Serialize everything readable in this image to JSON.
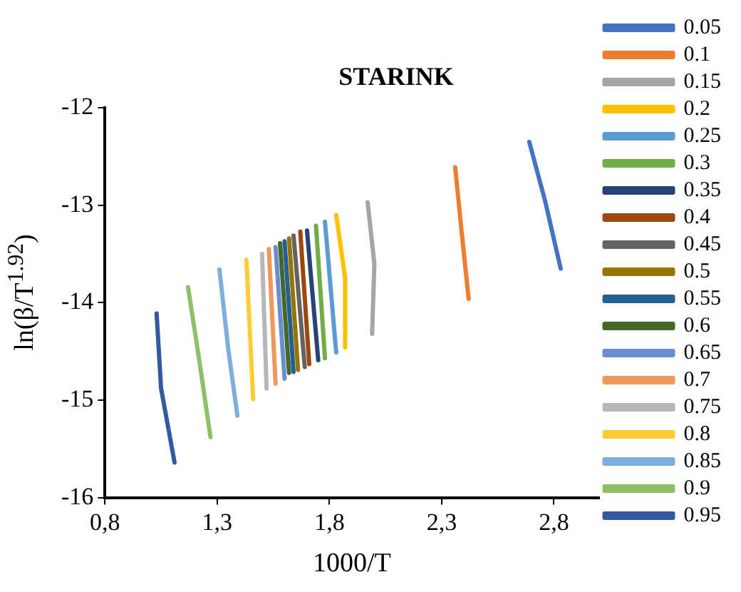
{
  "chart_data": {
    "type": "line",
    "title": "STARINK",
    "xlabel": "1000/T",
    "ylabel": "ln(β/T$^{1.92}$)",
    "xlim": [
      0.8,
      3.0
    ],
    "xticks": [
      {
        "value": 0.8,
        "label": "0,8"
      },
      {
        "value": 1.3,
        "label": "1,3"
      },
      {
        "value": 1.8,
        "label": "1,8"
      },
      {
        "value": 2.3,
        "label": "2,3"
      },
      {
        "value": 2.8,
        "label": "2,8"
      }
    ],
    "ylim": [
      -16,
      -12
    ],
    "yticks": [
      -16,
      -15,
      -14,
      -13,
      -12
    ],
    "grid": false,
    "legend": "right",
    "marker": "none",
    "line_style": "solid",
    "series": [
      {
        "name": "0.05",
        "color": "#4472c4",
        "x": [
          2.69,
          2.76,
          2.83
        ],
        "values": [
          -12.35,
          -12.95,
          -13.65
        ]
      },
      {
        "name": "0.1",
        "color": "#ed7d31",
        "x": [
          2.36,
          2.39,
          2.42
        ],
        "values": [
          -12.61,
          -13.3,
          -13.96
        ]
      },
      {
        "name": "0.15",
        "color": "#a5a5a5",
        "x": [
          1.97,
          2.0,
          1.99
        ],
        "values": [
          -12.97,
          -13.6,
          -14.32
        ]
      },
      {
        "name": "0.2",
        "color": "#ffc000",
        "x": [
          1.83,
          1.87,
          1.87
        ],
        "values": [
          -13.1,
          -13.75,
          -14.46
        ]
      },
      {
        "name": "0.25",
        "color": "#5b9bd5",
        "x": [
          1.78,
          1.83
        ],
        "values": [
          -13.17,
          -14.51
        ]
      },
      {
        "name": "0.3",
        "color": "#70ad47",
        "x": [
          1.74,
          1.78
        ],
        "values": [
          -13.21,
          -14.57
        ]
      },
      {
        "name": "0.35",
        "color": "#264478",
        "x": [
          1.7,
          1.75
        ],
        "values": [
          -13.26,
          -14.59
        ]
      },
      {
        "name": "0.4",
        "color": "#9e480e",
        "x": [
          1.67,
          1.71
        ],
        "values": [
          -13.27,
          -14.63
        ]
      },
      {
        "name": "0.45",
        "color": "#636363",
        "x": [
          1.64,
          1.69
        ],
        "values": [
          -13.31,
          -14.66
        ]
      },
      {
        "name": "0.5",
        "color": "#997300",
        "x": [
          1.62,
          1.66
        ],
        "values": [
          -13.34,
          -14.69
        ]
      },
      {
        "name": "0.55",
        "color": "#255e91",
        "x": [
          1.6,
          1.64
        ],
        "values": [
          -13.37,
          -14.71
        ]
      },
      {
        "name": "0.6",
        "color": "#43682b",
        "x": [
          1.58,
          1.62
        ],
        "values": [
          -13.39,
          -14.72
        ]
      },
      {
        "name": "0.65",
        "color": "#698ed0",
        "x": [
          1.56,
          1.6
        ],
        "values": [
          -13.43,
          -14.78
        ]
      },
      {
        "name": "0.7",
        "color": "#f1975a",
        "x": [
          1.53,
          1.56
        ],
        "values": [
          -13.45,
          -14.83
        ]
      },
      {
        "name": "0.75",
        "color": "#b7b7b7",
        "x": [
          1.5,
          1.52
        ],
        "values": [
          -13.5,
          -14.88
        ]
      },
      {
        "name": "0.8",
        "color": "#ffcd33",
        "x": [
          1.43,
          1.46
        ],
        "values": [
          -13.56,
          -14.99
        ]
      },
      {
        "name": "0.85",
        "color": "#7cafdd",
        "x": [
          1.31,
          1.35,
          1.39
        ],
        "values": [
          -13.66,
          -14.49,
          -15.16
        ]
      },
      {
        "name": "0.9",
        "color": "#8cc168",
        "x": [
          1.17,
          1.22,
          1.27
        ],
        "values": [
          -13.84,
          -14.59,
          -15.38
        ]
      },
      {
        "name": "0.95",
        "color": "#335aa1",
        "x": [
          1.03,
          1.05,
          1.11
        ],
        "values": [
          -14.11,
          -14.88,
          -15.64
        ]
      }
    ]
  }
}
